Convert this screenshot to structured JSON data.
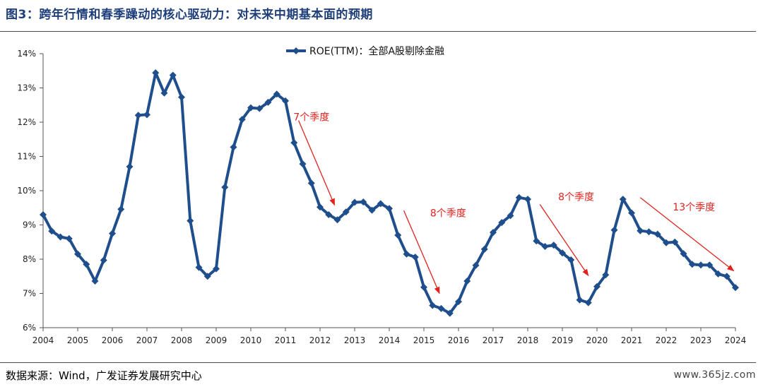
{
  "title": "图3：跨年行情和春季躁动的核心驱动力：对未来中期基本面的预期",
  "source": "数据来源：Wind，广发证券发展研究中心",
  "watermark": "www.365jz.com",
  "colors": {
    "series": "#1f4e8c",
    "annotation": "#e0231e",
    "title": "#1f3f7a"
  },
  "chart_data": {
    "type": "line",
    "title": "",
    "xlabel": "",
    "ylabel": "",
    "ylim": [
      6,
      14
    ],
    "xlim": [
      2004.0,
      2024.0
    ],
    "grid": false,
    "legend_position": "top-center",
    "y_ticks": [
      "6%",
      "7%",
      "8%",
      "9%",
      "10%",
      "11%",
      "12%",
      "13%",
      "14%"
    ],
    "x_ticks": [
      "2004",
      "2005",
      "2006",
      "2007",
      "2008",
      "2009",
      "2010",
      "2011",
      "2012",
      "2013",
      "2014",
      "2015",
      "2016",
      "2017",
      "2018",
      "2019",
      "2020",
      "2021",
      "2022",
      "2023",
      "2024"
    ],
    "series": [
      {
        "name": "ROE(TTM)：全部A股剔除金融",
        "marker": "diamond",
        "points": [
          [
            2004.0,
            9.3
          ],
          [
            2004.25,
            8.82
          ],
          [
            2004.5,
            8.65
          ],
          [
            2004.75,
            8.6
          ],
          [
            2005.0,
            8.15
          ],
          [
            2005.25,
            7.85
          ],
          [
            2005.5,
            7.36
          ],
          [
            2005.75,
            7.97
          ],
          [
            2006.0,
            8.75
          ],
          [
            2006.25,
            9.46
          ],
          [
            2006.5,
            10.7
          ],
          [
            2006.75,
            12.2
          ],
          [
            2007.0,
            12.22
          ],
          [
            2007.25,
            13.44
          ],
          [
            2007.5,
            12.85
          ],
          [
            2007.75,
            13.37
          ],
          [
            2008.0,
            12.73
          ],
          [
            2008.25,
            9.12
          ],
          [
            2008.5,
            7.76
          ],
          [
            2008.75,
            7.5
          ],
          [
            2009.0,
            7.72
          ],
          [
            2009.25,
            10.1
          ],
          [
            2009.5,
            11.27
          ],
          [
            2009.75,
            12.08
          ],
          [
            2010.0,
            12.42
          ],
          [
            2010.25,
            12.4
          ],
          [
            2010.5,
            12.58
          ],
          [
            2010.75,
            12.82
          ],
          [
            2011.0,
            12.62
          ],
          [
            2011.25,
            11.4
          ],
          [
            2011.5,
            10.78
          ],
          [
            2011.75,
            10.22
          ],
          [
            2012.0,
            9.52
          ],
          [
            2012.25,
            9.3
          ],
          [
            2012.5,
            9.15
          ],
          [
            2012.75,
            9.38
          ],
          [
            2013.0,
            9.66
          ],
          [
            2013.25,
            9.67
          ],
          [
            2013.5,
            9.43
          ],
          [
            2013.75,
            9.62
          ],
          [
            2014.0,
            9.48
          ],
          [
            2014.25,
            8.7
          ],
          [
            2014.5,
            8.15
          ],
          [
            2014.75,
            8.06
          ],
          [
            2015.0,
            7.18
          ],
          [
            2015.25,
            6.65
          ],
          [
            2015.5,
            6.56
          ],
          [
            2015.75,
            6.42
          ],
          [
            2016.0,
            6.76
          ],
          [
            2016.25,
            7.36
          ],
          [
            2016.5,
            7.82
          ],
          [
            2016.75,
            8.29
          ],
          [
            2017.0,
            8.78
          ],
          [
            2017.25,
            9.07
          ],
          [
            2017.5,
            9.27
          ],
          [
            2017.75,
            9.8
          ],
          [
            2018.0,
            9.75
          ],
          [
            2018.25,
            8.53
          ],
          [
            2018.5,
            8.37
          ],
          [
            2018.75,
            8.41
          ],
          [
            2019.0,
            8.18
          ],
          [
            2019.25,
            7.98
          ],
          [
            2019.5,
            6.81
          ],
          [
            2019.75,
            6.73
          ],
          [
            2020.0,
            7.2
          ],
          [
            2020.25,
            7.54
          ],
          [
            2020.5,
            8.85
          ],
          [
            2020.75,
            9.75
          ],
          [
            2021.0,
            9.35
          ],
          [
            2021.25,
            8.83
          ],
          [
            2021.5,
            8.8
          ],
          [
            2021.75,
            8.73
          ],
          [
            2022.0,
            8.48
          ],
          [
            2022.25,
            8.5
          ],
          [
            2022.5,
            8.16
          ],
          [
            2022.75,
            7.85
          ],
          [
            2023.0,
            7.83
          ],
          [
            2023.25,
            7.83
          ],
          [
            2023.5,
            7.57
          ],
          [
            2023.75,
            7.5
          ],
          [
            2024.0,
            7.17
          ]
        ]
      }
    ],
    "annotations": [
      {
        "text": "7个季度",
        "label_at": [
          2011.75,
          12.05
        ],
        "arrow_from": [
          2011.38,
          12.05
        ],
        "arrow_to": [
          2012.42,
          9.58
        ]
      },
      {
        "text": "8个季度",
        "label_at": [
          2015.7,
          9.25
        ],
        "arrow_from": [
          2014.42,
          9.42
        ],
        "arrow_to": [
          2015.45,
          7.0
        ]
      },
      {
        "text": "8个季度",
        "label_at": [
          2019.4,
          9.72
        ],
        "arrow_from": [
          2018.35,
          9.6
        ],
        "arrow_to": [
          2019.75,
          7.52
        ]
      },
      {
        "text": "13个季度",
        "label_at": [
          2022.8,
          9.42
        ],
        "arrow_from": [
          2021.25,
          9.8
        ],
        "arrow_to": [
          2023.95,
          7.66
        ]
      }
    ]
  }
}
